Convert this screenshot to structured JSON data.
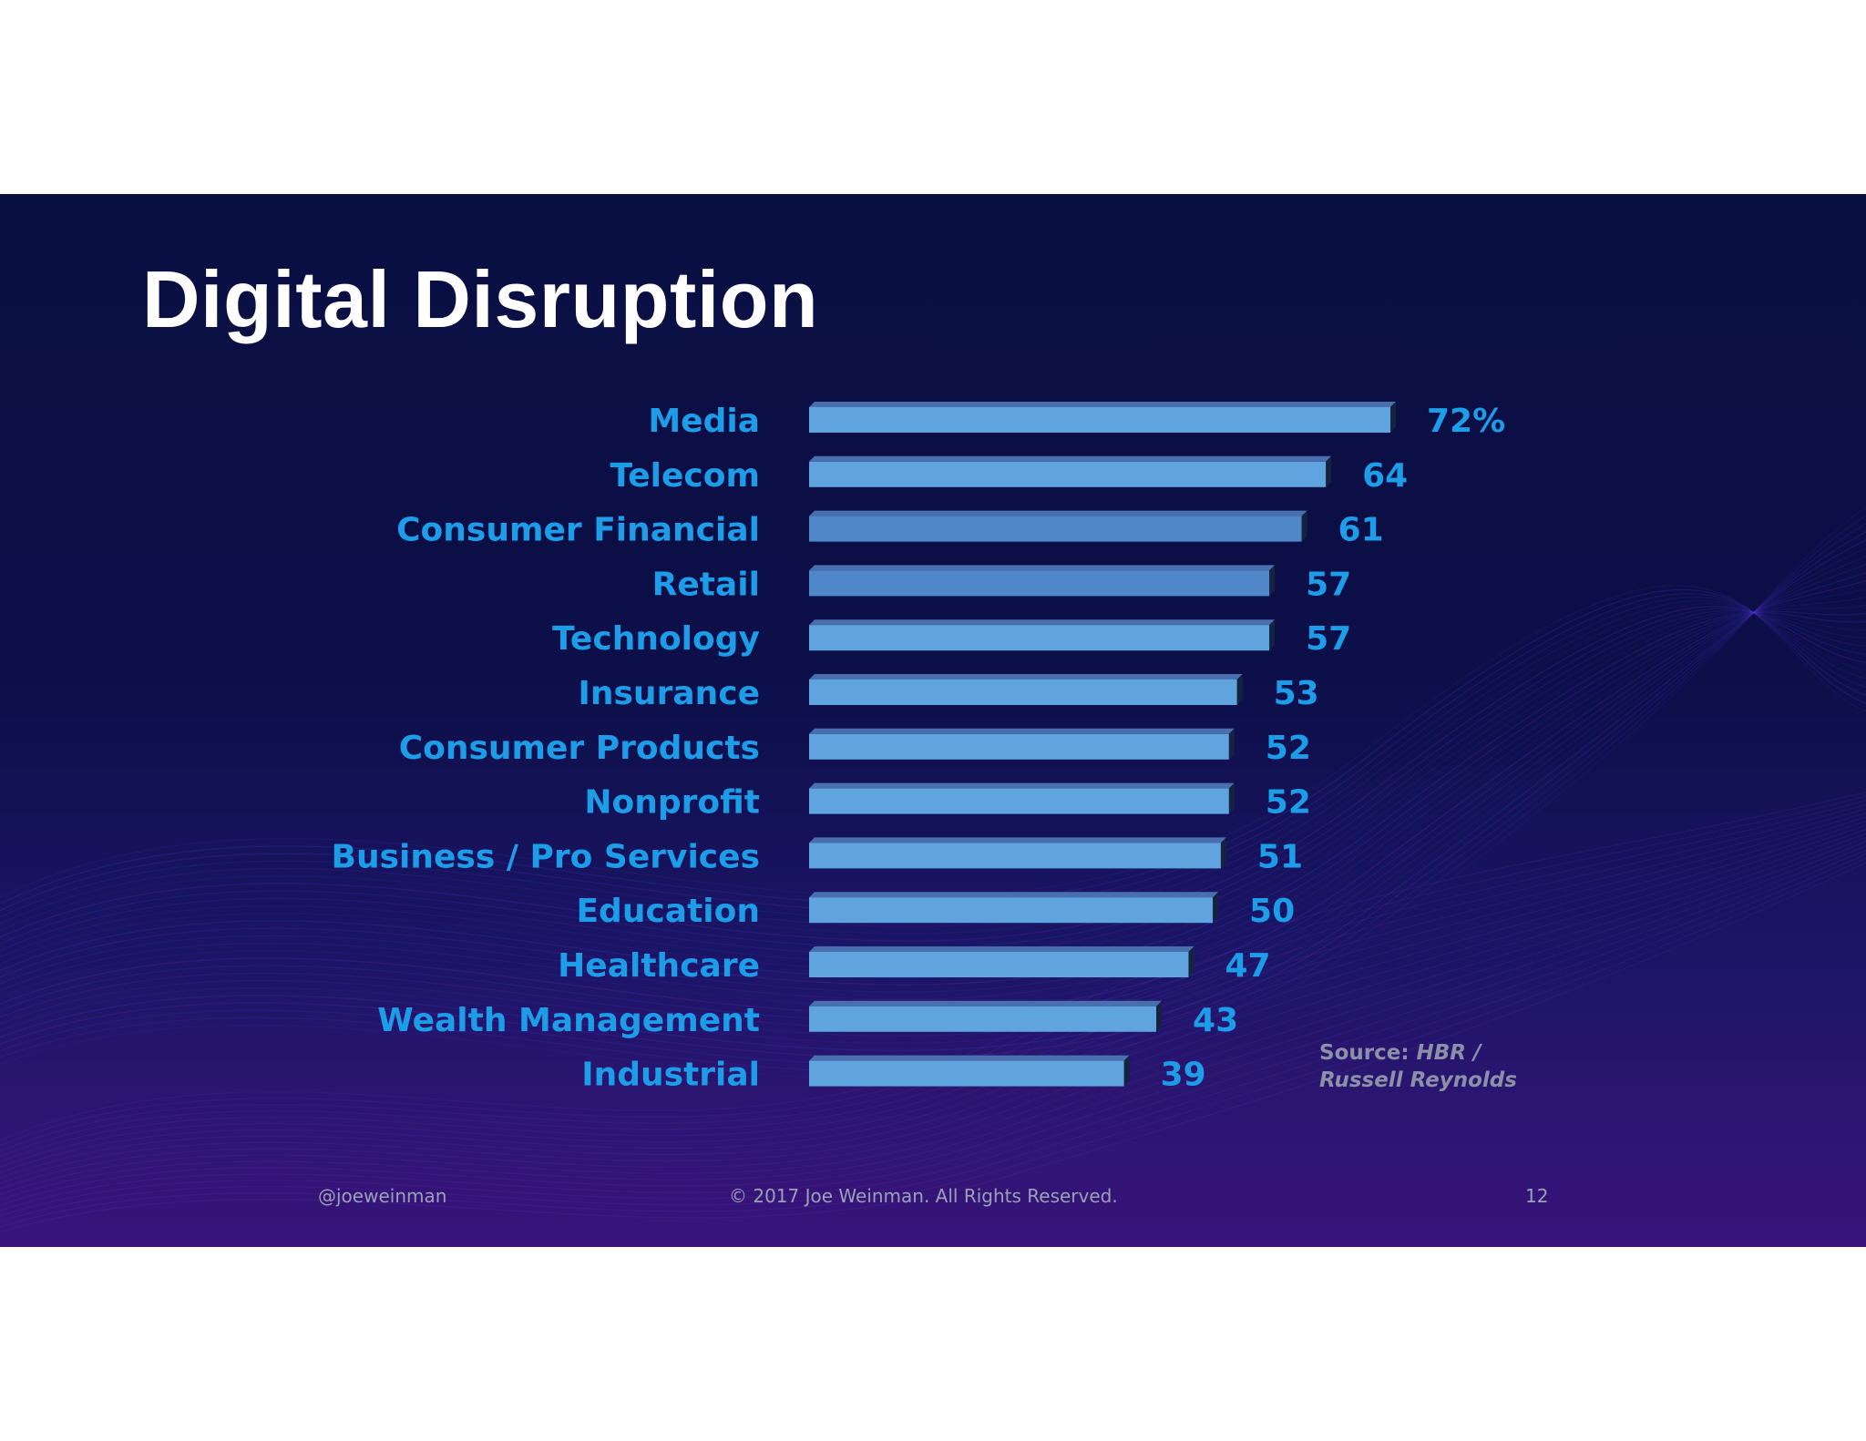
{
  "slide": {
    "title": "Digital Disruption",
    "source_label": "Source:",
    "source_line1": "HBR /",
    "source_line2": "Russell Reynolds",
    "footer_handle": "@joeweinman",
    "footer_copyright": "© 2017 Joe Weinman.  All Rights Reserved.",
    "page_number": "12"
  },
  "colors": {
    "label": "#1d9ce8",
    "bar_front": "#5fa3df",
    "bar_front_alt": "#4f87c9",
    "bar_top": "#4a6fae",
    "bar_side": "#16233f",
    "title": "#ffffff"
  },
  "chart_data": {
    "type": "bar",
    "orientation": "horizontal",
    "categories": [
      "Media",
      "Telecom",
      "Consumer Financial",
      "Retail",
      "Technology",
      "Insurance",
      "Consumer Products",
      "Nonprofit",
      "Business / Pro Services",
      "Education",
      "Healthcare",
      "Wealth Management",
      "Industrial"
    ],
    "values": [
      72,
      64,
      61,
      57,
      57,
      53,
      52,
      52,
      51,
      50,
      47,
      43,
      39
    ],
    "value_labels": [
      "72%",
      "64",
      "61",
      "57",
      "57",
      "53",
      "52",
      "52",
      "51",
      "50",
      "47",
      "43",
      "39"
    ],
    "xlim": [
      0,
      72
    ],
    "grid": false,
    "legend": "none"
  }
}
